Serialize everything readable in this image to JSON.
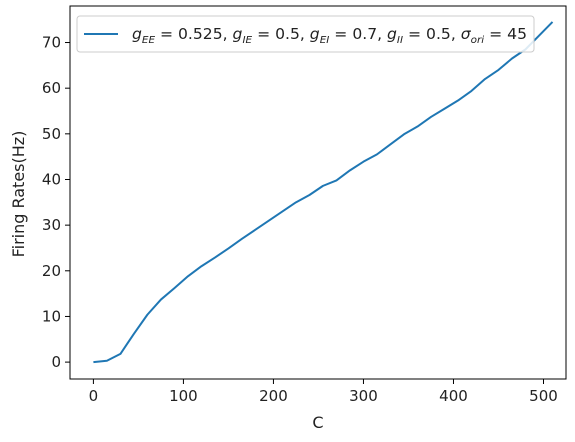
{
  "chart_data": {
    "type": "line",
    "title": "",
    "xlabel": "C",
    "ylabel": "Firing Rates(Hz)",
    "xlim": [
      -26,
      525
    ],
    "ylim": [
      -3.7,
      78
    ],
    "xticks": [
      0,
      100,
      200,
      300,
      400,
      500
    ],
    "yticks": [
      0,
      10,
      20,
      30,
      40,
      50,
      60,
      70
    ],
    "grid": false,
    "legend_position": "top",
    "series_color": "#1f77b4",
    "series": [
      {
        "name": "g_EE = 0.525, g_IE = 0.5, g_EI = 0.7, g_II = 0.5, σ_ori = 45",
        "x": [
          0,
          15,
          30,
          45,
          60,
          75,
          90,
          105,
          120,
          135,
          150,
          165,
          180,
          195,
          210,
          225,
          240,
          255,
          270,
          285,
          300,
          315,
          330,
          345,
          360,
          375,
          390,
          405,
          420,
          435,
          450,
          465,
          480,
          495,
          510
        ],
        "y": [
          0,
          0.3,
          1.8,
          6.2,
          10.4,
          13.7,
          16.2,
          18.8,
          21.0,
          22.9,
          24.9,
          27.0,
          29.0,
          31.0,
          33.0,
          35.0,
          36.6,
          38.6,
          39.8,
          42.0,
          43.9,
          45.5,
          47.7,
          49.9,
          51.6,
          53.7,
          55.5,
          57.3,
          59.4,
          62.0,
          64.0,
          66.5,
          68.5,
          71.5,
          74.5
        ]
      }
    ],
    "legend_parts": {
      "g": "g",
      "ee": "EE",
      "ie": "IE",
      "ei": "EI",
      "ii": "II",
      "sigma": "σ",
      "ori": "ori",
      "v_ee": " = 0.525, ",
      "v_ie": " = 0.5, ",
      "v_ei": " = 0.7, ",
      "v_ii": " = 0.5, ",
      "v_ori": " = 45"
    }
  }
}
